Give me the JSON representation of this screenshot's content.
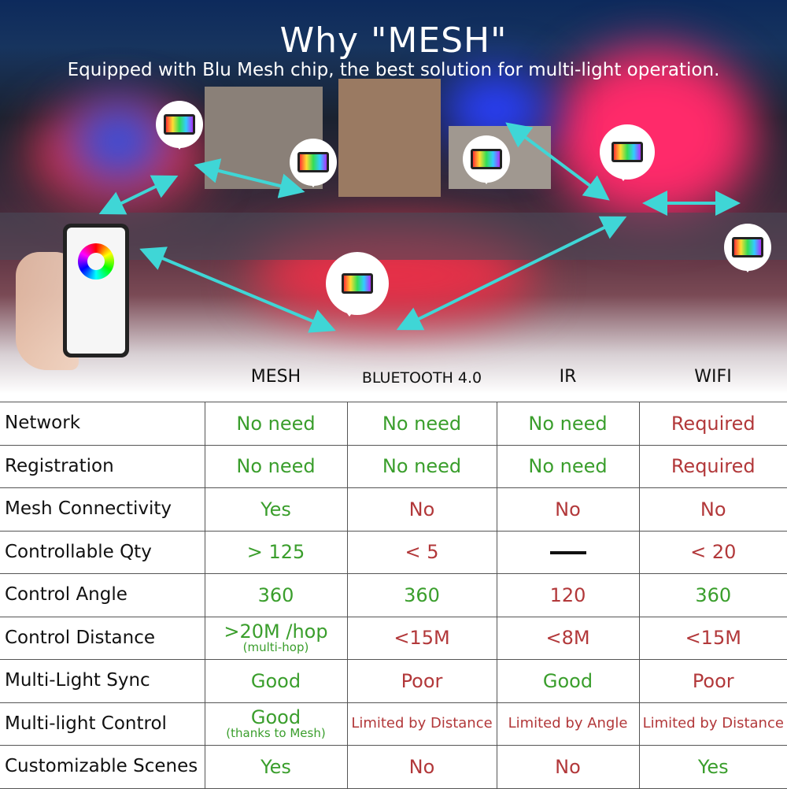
{
  "title": "Why \"MESH\"",
  "subtitle": "Equipped with Blu Mesh chip, the best solution for multi-light operation.",
  "colors": {
    "good": "#3a9e2c",
    "bad": "#b2383a",
    "arrow": "#3fd6d6"
  },
  "columns": [
    "MESH",
    "BLUETOOTH 4.0",
    "IR",
    "WIFI"
  ],
  "rows": [
    {
      "label": "Network",
      "cells": [
        {
          "v": "No need",
          "c": "g"
        },
        {
          "v": "No need",
          "c": "g"
        },
        {
          "v": "No need",
          "c": "g"
        },
        {
          "v": "Required",
          "c": "r"
        }
      ]
    },
    {
      "label": "Registration",
      "cells": [
        {
          "v": "No need",
          "c": "g"
        },
        {
          "v": "No need",
          "c": "g"
        },
        {
          "v": "No need",
          "c": "g"
        },
        {
          "v": "Required",
          "c": "r"
        }
      ]
    },
    {
      "label": "Mesh Connectivity",
      "cells": [
        {
          "v": "Yes",
          "c": "g"
        },
        {
          "v": "No",
          "c": "r"
        },
        {
          "v": "No",
          "c": "r"
        },
        {
          "v": "No",
          "c": "r"
        }
      ]
    },
    {
      "label": "Controllable Qty",
      "cells": [
        {
          "v": "> 125",
          "c": "g"
        },
        {
          "v": "< 5",
          "c": "r"
        },
        {
          "v": "—",
          "c": "dash"
        },
        {
          "v": "< 20",
          "c": "r"
        }
      ]
    },
    {
      "label": "Control Angle",
      "cells": [
        {
          "v": "360",
          "c": "g"
        },
        {
          "v": "360",
          "c": "g"
        },
        {
          "v": "120",
          "c": "r"
        },
        {
          "v": "360",
          "c": "g"
        }
      ]
    },
    {
      "label": "Control Distance",
      "cells": [
        {
          "v": ">20M /hop",
          "sub": "(multi-hop)",
          "c": "g"
        },
        {
          "v": "<15M",
          "c": "r"
        },
        {
          "v": "<8M",
          "c": "r"
        },
        {
          "v": "<15M",
          "c": "r"
        }
      ]
    },
    {
      "label": "Multi-Light Sync",
      "cells": [
        {
          "v": "Good",
          "c": "g"
        },
        {
          "v": "Poor",
          "c": "r"
        },
        {
          "v": "Good",
          "c": "g"
        },
        {
          "v": "Poor",
          "c": "r"
        }
      ]
    },
    {
      "label": "Multi-light Control",
      "cells": [
        {
          "v": "Good",
          "sub": "(thanks to Mesh)",
          "c": "g"
        },
        {
          "v": "Limited by Distance",
          "c": "r small"
        },
        {
          "v": "Limited by Angle",
          "c": "r small"
        },
        {
          "v": "Limited by Distance",
          "c": "r small"
        }
      ]
    },
    {
      "label": "Customizable Scenes",
      "cells": [
        {
          "v": "Yes",
          "c": "g"
        },
        {
          "v": "No",
          "c": "r"
        },
        {
          "v": "No",
          "c": "r"
        },
        {
          "v": "Yes",
          "c": "g"
        }
      ]
    }
  ]
}
